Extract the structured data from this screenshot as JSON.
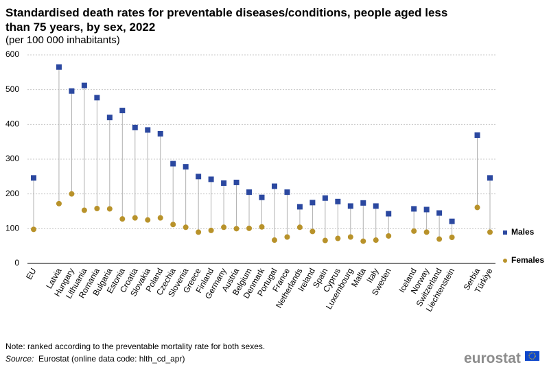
{
  "chart_data": {
    "type": "dot",
    "title": "Standardised death rates for preventable diseases/conditions, people aged less than 75 years, by sex, 2022",
    "subtitle": "(per 100 000 inhabitants)",
    "categories": [
      "EU",
      null,
      "Latvia",
      "Hungary",
      "Lithuania",
      "Romania",
      "Bulgaria",
      "Estonia",
      "Croatia",
      "Slovakia",
      "Poland",
      "Czechia",
      "Slovenia",
      "Greece",
      "Finland",
      "Germany",
      "Austria",
      "Belgium",
      "Denmark",
      "Portugal",
      "France",
      "Netherlands",
      "Ireland",
      "Spain",
      "Cyprus",
      "Luxembourg",
      "Malta",
      "Italy",
      "Sweden",
      null,
      "Iceland",
      "Norway",
      "Switzerland",
      "Liechtenstein",
      null,
      "Serbia",
      "Türkiye"
    ],
    "series": [
      {
        "name": "Males",
        "color": "#2b48a0",
        "values": [
          246,
          null,
          565,
          496,
          512,
          477,
          420,
          440,
          391,
          384,
          373,
          287,
          278,
          250,
          242,
          231,
          233,
          205,
          190,
          222,
          205,
          163,
          175,
          188,
          178,
          165,
          174,
          165,
          143,
          null,
          157,
          155,
          145,
          121,
          null,
          369,
          246
        ]
      },
      {
        "name": "Females",
        "color": "#b8922a",
        "values": [
          98,
          null,
          172,
          200,
          153,
          158,
          157,
          128,
          131,
          125,
          131,
          112,
          104,
          90,
          95,
          104,
          100,
          101,
          105,
          67,
          76,
          104,
          92,
          66,
          72,
          76,
          64,
          67,
          79,
          null,
          93,
          90,
          70,
          75,
          null,
          161,
          90
        ]
      }
    ],
    "ylim": [
      0,
      600
    ],
    "yticks": [
      0,
      100,
      200,
      300,
      400,
      500,
      600
    ],
    "grid": true,
    "legend": "right",
    "note": "Note: ranked according to the preventable mortality rate for both sexes.",
    "source_label": "Source:",
    "source": "Eurostat (online data code: hlth_cd_apr)",
    "logo": "eurostat"
  }
}
